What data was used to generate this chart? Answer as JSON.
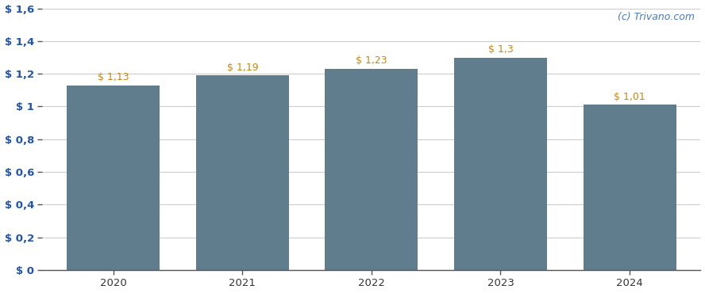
{
  "categories": [
    "2020",
    "2021",
    "2022",
    "2023",
    "2024"
  ],
  "values": [
    1.13,
    1.19,
    1.23,
    1.3,
    1.01
  ],
  "bar_labels": [
    "$ 1,13",
    "$ 1,19",
    "$ 1,23",
    "$ 1,3",
    "$ 1,01"
  ],
  "bar_color": "#607d8e",
  "ylim": [
    0,
    1.6
  ],
  "yticks": [
    0,
    0.2,
    0.4,
    0.6,
    0.8,
    1.0,
    1.2,
    1.4,
    1.6
  ],
  "ytick_labels": [
    "$ 0",
    "$ 0,2",
    "$ 0,4",
    "$ 0,6",
    "$ 0,8",
    "$ 1",
    "$ 1,2",
    "$ 1,4",
    "$ 1,6"
  ],
  "watermark": "(c) Trivano.com",
  "watermark_color": "#4a7abf",
  "background_color": "#ffffff",
  "grid_color": "#cccccc",
  "label_color": "#c8860a",
  "ytick_color": "#2255aa",
  "xtick_color": "#333333",
  "bar_width": 0.72
}
